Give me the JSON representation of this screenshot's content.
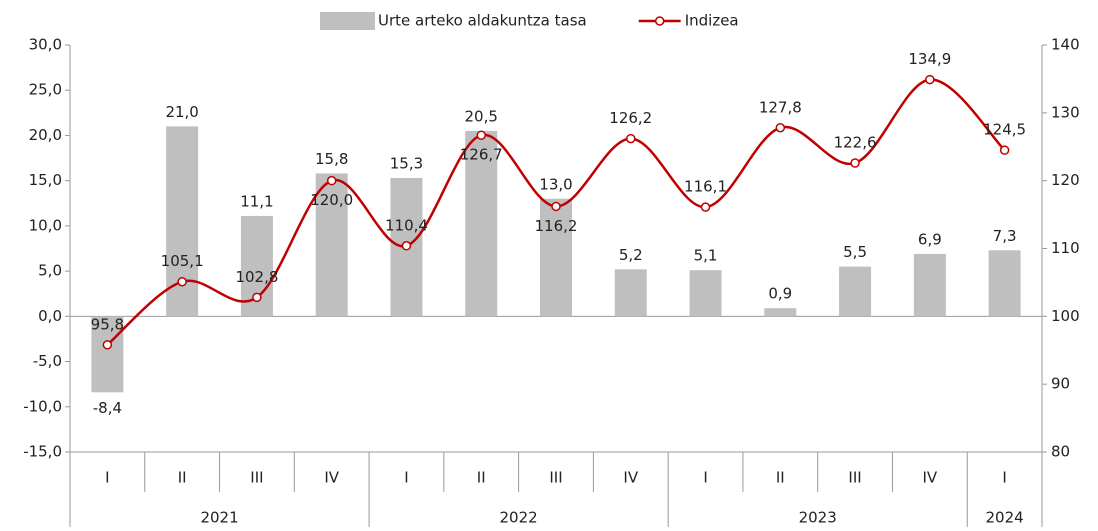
{
  "chart_data": {
    "type": "bar-line",
    "categories": [
      "I",
      "II",
      "III",
      "IV",
      "I",
      "II",
      "III",
      "IV",
      "I",
      "II",
      "III",
      "IV",
      "I"
    ],
    "groups": [
      {
        "name": "2021",
        "count": 4
      },
      {
        "name": "2022",
        "count": 4
      },
      {
        "name": "2023",
        "count": 4
      },
      {
        "name": "2024",
        "count": 1
      }
    ],
    "series": [
      {
        "name": "Urte arteko aldakuntza tasa",
        "type": "bar",
        "color": "#bfbfbf",
        "values": [
          -8.4,
          21.0,
          11.1,
          15.8,
          15.3,
          20.5,
          13.0,
          5.2,
          5.1,
          0.9,
          5.5,
          6.9,
          7.3
        ],
        "value_labels": [
          "-8,4",
          "21,0",
          "11,1",
          "15,8",
          "15,3",
          "20,5",
          "13,0",
          "5,2",
          "5,1",
          "0,9",
          "5,5",
          "6,9",
          "7,3"
        ]
      },
      {
        "name": "Indizea",
        "type": "line",
        "axis": "y2",
        "color": "#c00000",
        "values": [
          95.8,
          105.1,
          102.8,
          120.0,
          110.4,
          126.7,
          116.2,
          126.2,
          116.1,
          127.8,
          122.6,
          134.9,
          124.5
        ],
        "value_labels": [
          "95,8",
          "105,1",
          "102,8",
          "120,0",
          "110,4",
          "126,7",
          "116,2",
          "126,2",
          "116,1",
          "127,8",
          "122,6",
          "134,9",
          "124,5"
        ]
      }
    ],
    "ylim": [
      -15,
      30
    ],
    "yticks": [
      {
        "value": -15,
        "label": "-15,0"
      },
      {
        "value": -10,
        "label": "-10,0"
      },
      {
        "value": -5,
        "label": "-5,0"
      },
      {
        "value": 0,
        "label": "0,0"
      },
      {
        "value": 5,
        "label": "5,0"
      },
      {
        "value": 10,
        "label": "10,0"
      },
      {
        "value": 15,
        "label": "15,0"
      },
      {
        "value": 20,
        "label": "20,0"
      },
      {
        "value": 25,
        "label": "25,0"
      },
      {
        "value": 30,
        "label": "30,0"
      }
    ],
    "y2lim": [
      80,
      140
    ],
    "y2ticks": [
      80,
      90,
      100,
      110,
      120,
      130,
      140
    ],
    "legend": "top",
    "grid": false
  }
}
